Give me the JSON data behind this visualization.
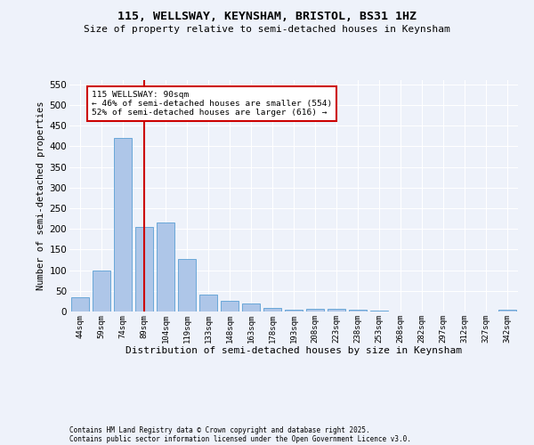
{
  "title1": "115, WELLSWAY, KEYNSHAM, BRISTOL, BS31 1HZ",
  "title2": "Size of property relative to semi-detached houses in Keynsham",
  "xlabel": "Distribution of semi-detached houses by size in Keynsham",
  "ylabel": "Number of semi-detached properties",
  "categories": [
    "44sqm",
    "59sqm",
    "74sqm",
    "89sqm",
    "104sqm",
    "119sqm",
    "133sqm",
    "148sqm",
    "163sqm",
    "178sqm",
    "193sqm",
    "208sqm",
    "223sqm",
    "238sqm",
    "253sqm",
    "268sqm",
    "282sqm",
    "297sqm",
    "312sqm",
    "327sqm",
    "342sqm"
  ],
  "values": [
    35,
    100,
    420,
    205,
    215,
    128,
    40,
    25,
    20,
    8,
    5,
    6,
    6,
    4,
    2,
    1,
    1,
    0,
    0,
    0,
    5
  ],
  "bar_color": "#aec6e8",
  "bar_edge_color": "#5a9fd4",
  "vline_index": 3,
  "vline_color": "#cc0000",
  "annotation_title": "115 WELLSWAY: 90sqm",
  "annotation_line1": "← 46% of semi-detached houses are smaller (554)",
  "annotation_line2": "52% of semi-detached houses are larger (616) →",
  "annotation_box_color": "#ffffff",
  "annotation_box_edge": "#cc0000",
  "ylim": [
    0,
    560
  ],
  "yticks": [
    0,
    50,
    100,
    150,
    200,
    250,
    300,
    350,
    400,
    450,
    500,
    550
  ],
  "footnote1": "Contains HM Land Registry data © Crown copyright and database right 2025.",
  "footnote2": "Contains public sector information licensed under the Open Government Licence v3.0.",
  "bg_color": "#eef2fa",
  "grid_color": "#ffffff"
}
